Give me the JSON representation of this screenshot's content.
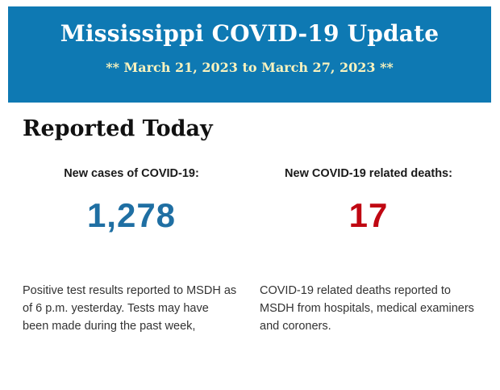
{
  "colors": {
    "banner_background": "#0e79b3",
    "banner_title_text": "#ffffff",
    "banner_subtitle_text": "#faf3be",
    "heading_text": "#111111",
    "label_text": "#1a1a1a",
    "cases_value_text": "#1f6fa3",
    "deaths_value_text": "#c00712",
    "body_text": "#333333",
    "page_background": "#ffffff"
  },
  "banner": {
    "title": "Mississippi COVID-19 Update",
    "date_range": "** March 21, 2023 to March 27, 2023 **"
  },
  "report": {
    "heading": "Reported Today",
    "stats": [
      {
        "label": "New cases of COVID-19:",
        "value": "1,278",
        "description": "Positive test results reported to MSDH as of 6 p.m. yesterday. Tests may have been made during the past week,"
      },
      {
        "label": "New COVID-19 related deaths:",
        "value": "17",
        "description": "COVID-19 related deaths reported to MSDH from hospitals, medical examiners and coroners."
      }
    ]
  }
}
